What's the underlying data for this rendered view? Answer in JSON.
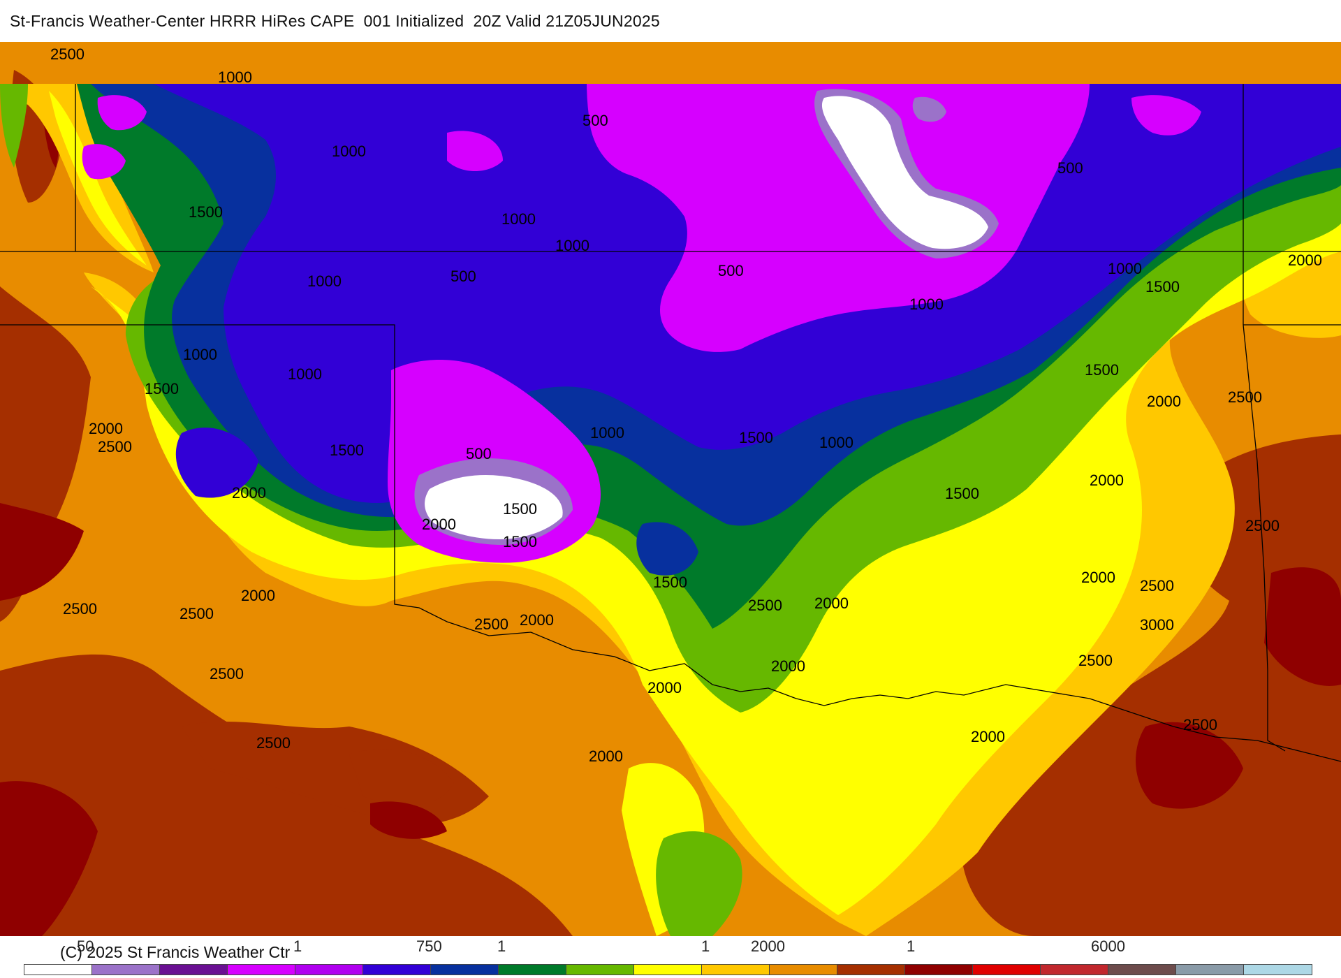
{
  "header": {
    "title": "St-Francis Weather-Center HRRR HiRes CAPE  001 Initialized  20Z Valid 21Z05JUN2025"
  },
  "map": {
    "product": "HRRR CAPE",
    "colors": {
      "white": "#ffffff",
      "lavender": "#9b72c9",
      "purple": "#6a0f93",
      "magenta": "#d600ff",
      "violet": "#b000f0",
      "blue": "#3200d6",
      "navy": "#07309e",
      "dark_green": "#007a2a",
      "green": "#66b800",
      "yellow": "#ffff00",
      "gold": "#ffc800",
      "orange": "#e88c00",
      "brown": "#a52f00",
      "dark_red": "#8f0000",
      "red": "#e00000"
    },
    "contour_labels": [
      "2500",
      "1000",
      "500",
      "1000",
      "1500",
      "1000",
      "1000",
      "500",
      "500",
      "1000",
      "500",
      "1000",
      "1000",
      "1500",
      "2000",
      "1000",
      "1000",
      "1500",
      "2000",
      "2500",
      "1500",
      "500",
      "1000",
      "1500",
      "1000",
      "1500",
      "2000",
      "2500",
      "2000",
      "1500",
      "2000",
      "1500",
      "2000",
      "2500",
      "2500",
      "2500",
      "2000",
      "2500",
      "2000",
      "2500",
      "2000",
      "2000",
      "2500",
      "3000",
      "2500",
      "2500",
      "2500",
      "2000",
      "2500",
      "2000",
      "2000",
      "1500",
      "1500",
      "2000"
    ]
  },
  "legend": {
    "copyright": "(C) 2025 St Francis Weather Ctr",
    "tick_labels": [
      "50",
      "1",
      "750",
      "1",
      "1",
      "2000",
      "1",
      "6000"
    ],
    "colorbar_colors": [
      "#ffffff",
      "#9b72c9",
      "#6a0f93",
      "#d600ff",
      "#b000f0",
      "#3200d6",
      "#07309e",
      "#007a2a",
      "#66b800",
      "#ffff00",
      "#ffc800",
      "#e88c00",
      "#a52f00",
      "#8f0000",
      "#e00000",
      "#c1272d",
      "#6d4c4c",
      "#8a9ba8",
      "#add8e6"
    ]
  }
}
